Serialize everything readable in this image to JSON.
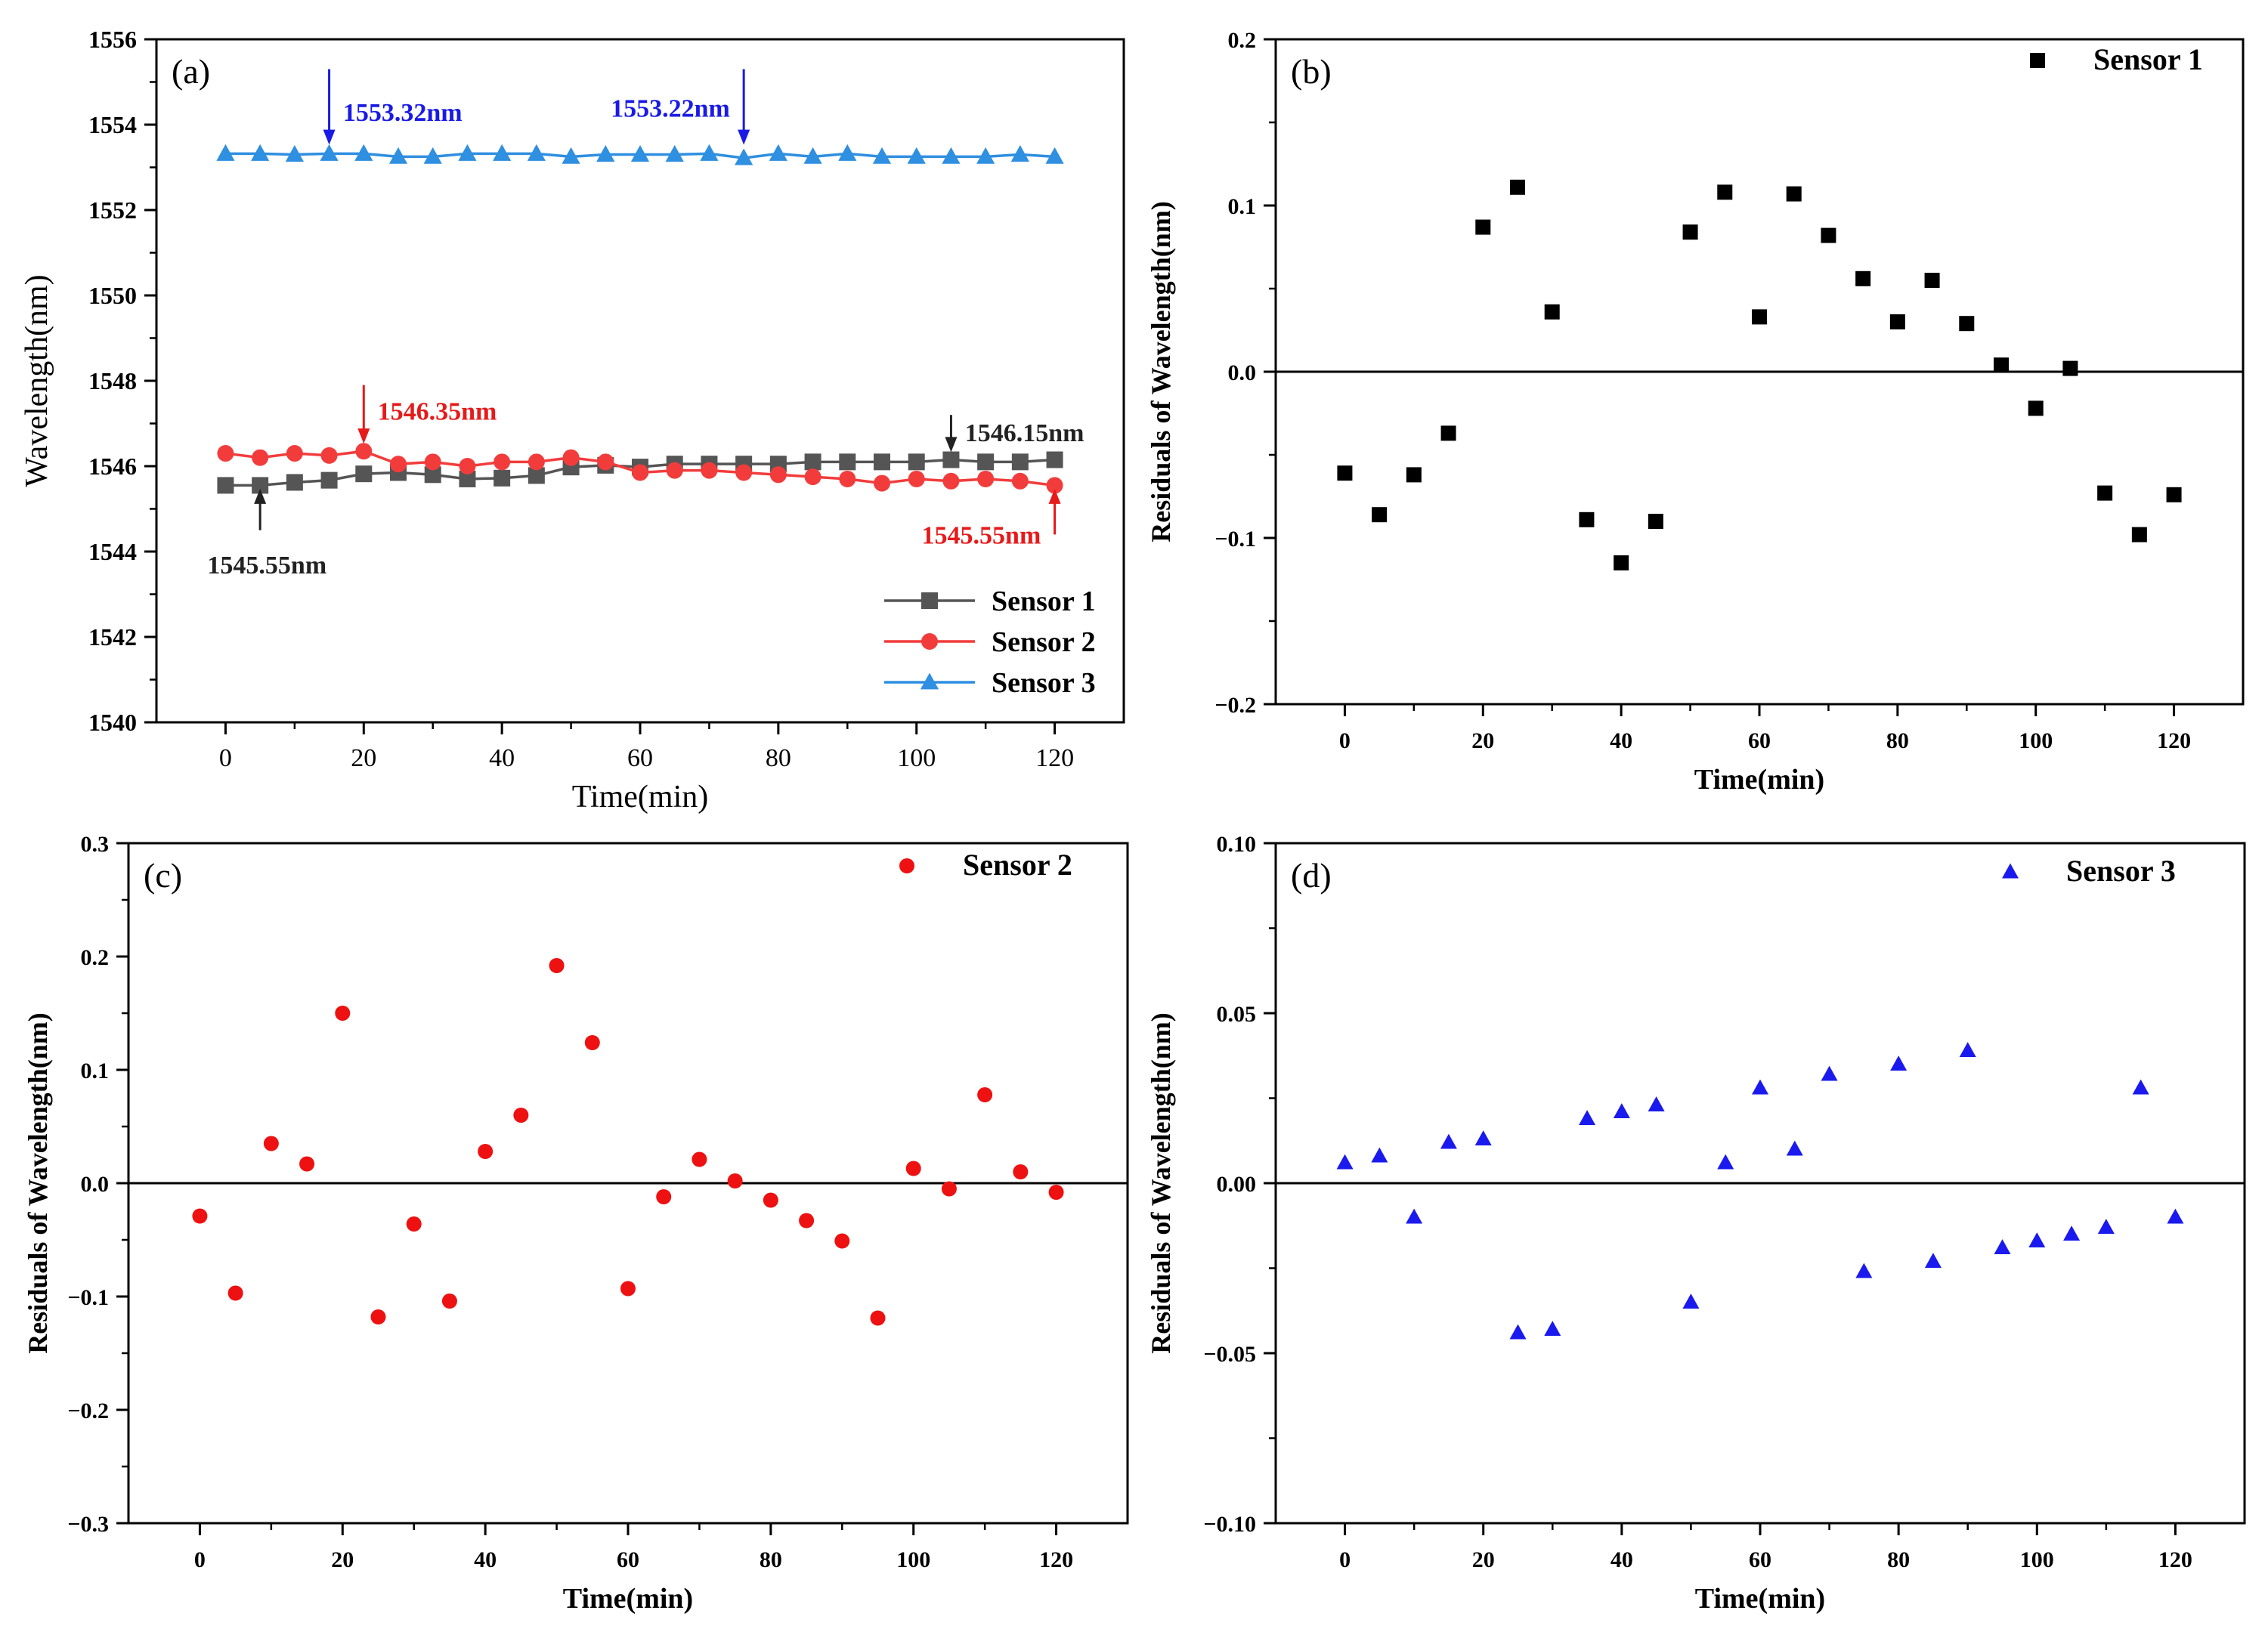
{
  "chart_data": [
    {
      "type": "line",
      "panel_label": "(a)",
      "xlabel": "Time(min)",
      "ylabel": "Wavelength(nm)",
      "xlim": [
        -10,
        130
      ],
      "ylim": [
        1540,
        1556
      ],
      "xticks": [
        0,
        20,
        40,
        60,
        80,
        100,
        120
      ],
      "yticks": [
        1540,
        1542,
        1544,
        1546,
        1548,
        1550,
        1552,
        1554,
        1556
      ],
      "legend_position": "bottom-right",
      "x": [
        0,
        5,
        10,
        15,
        20,
        25,
        30,
        35,
        40,
        45,
        50,
        55,
        60,
        65,
        70,
        75,
        80,
        85,
        90,
        95,
        100,
        105,
        110,
        115,
        120
      ],
      "series": [
        {
          "name": "Sensor 1",
          "color": "#555555",
          "marker": "square",
          "values": [
            1545.55,
            1545.55,
            1545.62,
            1545.67,
            1545.82,
            1545.85,
            1545.8,
            1545.7,
            1545.72,
            1545.78,
            1545.98,
            1546.02,
            1545.98,
            1546.05,
            1546.05,
            1546.05,
            1546.05,
            1546.1,
            1546.1,
            1546.1,
            1546.1,
            1546.15,
            1546.1,
            1546.1,
            1546.15
          ]
        },
        {
          "name": "Sensor 2",
          "color": "#f23c3c",
          "marker": "circle",
          "values": [
            1546.3,
            1546.2,
            1546.3,
            1546.25,
            1546.35,
            1546.05,
            1546.1,
            1546.0,
            1546.1,
            1546.1,
            1546.2,
            1546.1,
            1545.85,
            1545.9,
            1545.9,
            1545.85,
            1545.8,
            1545.75,
            1545.7,
            1545.6,
            1545.7,
            1545.65,
            1545.7,
            1545.65,
            1545.55
          ]
        },
        {
          "name": "Sensor 3",
          "color": "#2f8fe0",
          "marker": "triangle",
          "values": [
            1553.32,
            1553.32,
            1553.3,
            1553.32,
            1553.32,
            1553.25,
            1553.25,
            1553.32,
            1553.32,
            1553.32,
            1553.25,
            1553.3,
            1553.3,
            1553.3,
            1553.32,
            1553.22,
            1553.32,
            1553.25,
            1553.32,
            1553.25,
            1553.25,
            1553.25,
            1553.25,
            1553.3,
            1553.25
          ]
        }
      ],
      "annotations": [
        {
          "text": "1553.32nm",
          "color": "#1a1ae6",
          "arrow_x": 15,
          "arrow_dir": "down",
          "arrow_from": 1555.3,
          "arrow_to": 1553.6,
          "text_x": 17,
          "text_y": 1554.3,
          "anchor": "start"
        },
        {
          "text": "1553.22nm",
          "color": "#1a1ae6",
          "arrow_x": 75,
          "arrow_dir": "down",
          "arrow_from": 1555.3,
          "arrow_to": 1553.6,
          "text_x": 73,
          "text_y": 1554.4,
          "anchor": "end"
        },
        {
          "text": "1546.35nm",
          "color": "#e61a1a",
          "arrow_x": 20,
          "arrow_dir": "down",
          "arrow_from": 1547.9,
          "arrow_to": 1546.6,
          "text_x": 22,
          "text_y": 1547.3,
          "anchor": "start"
        },
        {
          "text": "1546.15nm",
          "color": "#222222",
          "arrow_x": 105,
          "arrow_dir": "down",
          "arrow_from": 1547.2,
          "arrow_to": 1546.4,
          "text_x": 107,
          "text_y": 1546.8,
          "anchor": "start"
        },
        {
          "text": "1545.55nm",
          "color": "#222222",
          "arrow_x": 5,
          "arrow_dir": "up",
          "arrow_from": 1544.5,
          "arrow_to": 1545.4,
          "text_x": 6,
          "text_y": 1543.7,
          "anchor": "middle"
        },
        {
          "text": "1545.55nm",
          "color": "#e61a1a",
          "arrow_x": 120,
          "arrow_dir": "up",
          "arrow_from": 1544.4,
          "arrow_to": 1545.4,
          "text_x": 118,
          "text_y": 1544.4,
          "anchor": "end"
        }
      ]
    },
    {
      "type": "scatter",
      "panel_label": "(b)",
      "xlabel": "Time(min)",
      "ylabel": "Residuals of Wavelength(nm)",
      "xlim": [
        -10,
        130
      ],
      "ylim": [
        -0.2,
        0.2
      ],
      "xticks": [
        0,
        20,
        40,
        60,
        80,
        100,
        120
      ],
      "yticks": [
        -0.2,
        -0.1,
        0.0,
        0.1,
        0.2
      ],
      "ytick_labels": [
        "−0.2",
        "−0.1",
        "0.0",
        "0.1",
        "0.2"
      ],
      "zero_line": true,
      "legend_position": "top-right",
      "series": [
        {
          "name": "Sensor 1",
          "color": "#000000",
          "marker": "square",
          "x": [
            0,
            5,
            10,
            15,
            20,
            25,
            30,
            35,
            40,
            45,
            50,
            55,
            60,
            65,
            70,
            75,
            80,
            85,
            90,
            95,
            100,
            105,
            110,
            115,
            120
          ],
          "values": [
            -0.061,
            -0.086,
            -0.062,
            -0.037,
            0.087,
            0.111,
            0.036,
            -0.089,
            -0.115,
            -0.09,
            0.084,
            0.108,
            0.033,
            0.107,
            0.082,
            0.056,
            0.03,
            0.055,
            0.029,
            0.004,
            -0.022,
            0.002,
            -0.073,
            -0.098,
            -0.074
          ]
        }
      ]
    },
    {
      "type": "scatter",
      "panel_label": "(c)",
      "xlabel": "Time(min)",
      "ylabel": "Residuals of Wavelength(nm)",
      "xlim": [
        -10,
        130
      ],
      "ylim": [
        -0.3,
        0.3
      ],
      "xticks": [
        0,
        20,
        40,
        60,
        80,
        100,
        120
      ],
      "yticks": [
        -0.3,
        -0.2,
        -0.1,
        0.0,
        0.1,
        0.2,
        0.3
      ],
      "ytick_labels": [
        "−0.3",
        "−0.2",
        "−0.1",
        "0.0",
        "0.1",
        "0.2",
        "0.3"
      ],
      "zero_line": true,
      "legend_position": "top-right",
      "series": [
        {
          "name": "Sensor 2",
          "color": "#ee1111",
          "marker": "circle",
          "x": [
            0,
            5,
            10,
            15,
            20,
            25,
            30,
            35,
            40,
            45,
            50,
            55,
            60,
            65,
            70,
            75,
            80,
            85,
            90,
            95,
            100,
            105,
            110,
            115,
            120
          ],
          "values": [
            -0.029,
            -0.097,
            0.035,
            0.017,
            0.15,
            -0.118,
            -0.036,
            -0.104,
            0.028,
            0.06,
            0.192,
            0.124,
            -0.093,
            -0.012,
            0.021,
            0.002,
            -0.015,
            -0.033,
            -0.051,
            -0.119,
            0.013,
            -0.005,
            0.078,
            0.01,
            -0.008
          ]
        }
      ]
    },
    {
      "type": "scatter",
      "panel_label": "(d)",
      "xlabel": "Time(min)",
      "ylabel": "Residuals of Wavelength(nm)",
      "xlim": [
        -10,
        130
      ],
      "ylim": [
        -0.1,
        0.1
      ],
      "xticks": [
        0,
        20,
        40,
        60,
        80,
        100,
        120
      ],
      "yticks": [
        -0.1,
        -0.05,
        0.0,
        0.05,
        0.1
      ],
      "ytick_labels": [
        "−0.10",
        "−0.05",
        "0.00",
        "0.05",
        "0.10"
      ],
      "zero_line": true,
      "legend_position": "top-right",
      "series": [
        {
          "name": "Sensor 3",
          "color": "#1a1aee",
          "marker": "triangle",
          "x": [
            0,
            5,
            10,
            15,
            20,
            25,
            30,
            35,
            40,
            45,
            50,
            55,
            60,
            65,
            70,
            75,
            80,
            85,
            90,
            95,
            100,
            105,
            110,
            115,
            120
          ],
          "values": [
            0.006,
            0.008,
            -0.01,
            0.012,
            0.013,
            -0.044,
            -0.043,
            0.019,
            0.021,
            0.023,
            -0.035,
            0.006,
            0.028,
            0.01,
            0.032,
            -0.026,
            0.035,
            -0.023,
            0.039,
            -0.019,
            -0.017,
            -0.015,
            -0.013,
            0.028,
            -0.01
          ]
        }
      ]
    }
  ]
}
